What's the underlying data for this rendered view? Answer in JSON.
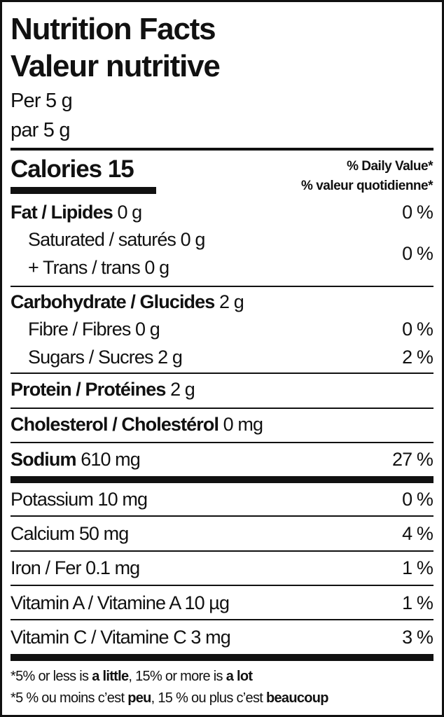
{
  "title_en": "Nutrition Facts",
  "title_fr": "Valeur nutritive",
  "serving_en": "Per 5 g",
  "serving_fr": "par 5 g",
  "calories_label": "Calories 15",
  "dv_header_en": "% Daily Value*",
  "dv_header_fr": "% valeur quotidienne*",
  "nutrients": {
    "fat": {
      "label": "Fat / Lipides",
      "amount": "0 g",
      "dv": "0 %"
    },
    "saturated": {
      "label": "Saturated / saturés 0 g"
    },
    "trans": {
      "label": "+ Trans / trans 0 g",
      "dv": "0 %"
    },
    "carb": {
      "label": "Carbohydrate / Glucides",
      "amount": "2 g"
    },
    "fibre": {
      "label": "Fibre / Fibres 0 g",
      "dv": "0 %"
    },
    "sugars": {
      "label": "Sugars / Sucres 2 g",
      "dv": "2 %"
    },
    "protein": {
      "label": "Protein / Protéines",
      "amount": "2 g"
    },
    "cholesterol": {
      "label": "Cholesterol / Cholestérol",
      "amount": "0 mg"
    },
    "sodium": {
      "label": "Sodium",
      "amount": "610 mg",
      "dv": "27 %"
    },
    "potassium": {
      "label": "Potassium 10 mg",
      "dv": "0 %"
    },
    "calcium": {
      "label": "Calcium 50 mg",
      "dv": "4 %"
    },
    "iron": {
      "label": "Iron / Fer 0.1 mg",
      "dv": "1 %"
    },
    "vitamin_a": {
      "label": "Vitamin A / Vitamine A 10 µg",
      "dv": "1 %"
    },
    "vitamin_c": {
      "label": "Vitamin C / Vitamine C 3 mg",
      "dv": "3 %"
    }
  },
  "footnote_en": {
    "p1": "*5% or less is ",
    "b1": "a little",
    ", p2": "",
    "p2": ", 15% or more is ",
    "b2": "a lot"
  },
  "footnote_fr": {
    "p1": "*5 % ou moins c’est ",
    "b1": "peu",
    "p2": ", 15 % ou plus c’est ",
    "b2": "beaucoup"
  }
}
